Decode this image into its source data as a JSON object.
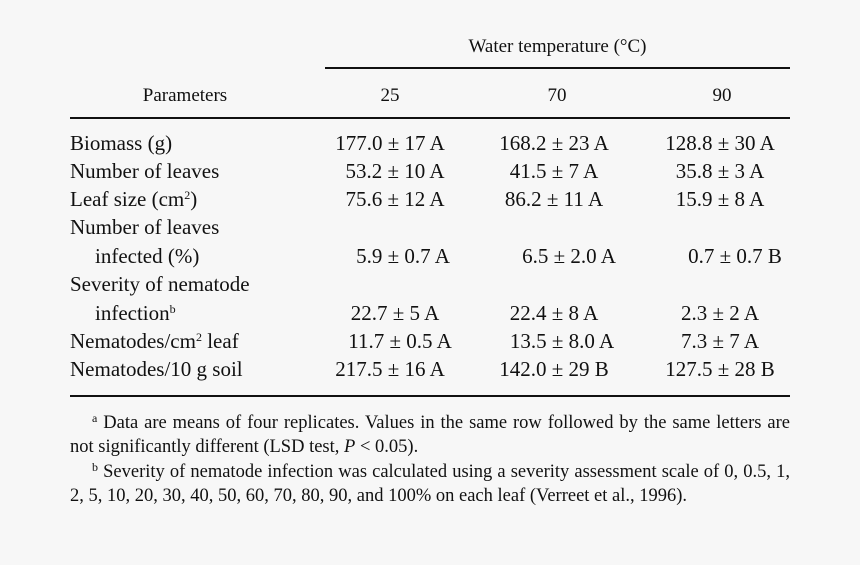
{
  "header": {
    "group_title": "Water temperature (°C)",
    "param_label": "Parameters",
    "columns": [
      "25",
      "70",
      "90"
    ]
  },
  "rows": [
    {
      "label": "Biomass (g)",
      "values": [
        "177.0 ± 17 A",
        "168.2 ± 23 A",
        "128.8 ± 30 A"
      ]
    },
    {
      "label": "Number of leaves",
      "values": [
        "53.2 ± 10 A",
        "41.5 ± 7 A",
        "35.8 ± 3 A"
      ]
    },
    {
      "label_pre": "Leaf size (cm",
      "label_sup": "2",
      "label_post": ")",
      "values": [
        "75.6 ± 12 A",
        "86.2 ± 11 A",
        "15.9 ± 8 A"
      ]
    },
    {
      "label_line1": "Number of leaves",
      "label_line2": "infected (%)",
      "values": [
        "5.9 ± 0.7 A",
        "6.5 ± 2.0 A",
        "0.7 ± 0.7 B"
      ]
    },
    {
      "label_line1": "Severity of nematode",
      "label_line2": "infection",
      "label_sup": "b",
      "values": [
        "22.7 ± 5 A",
        "22.4 ± 8 A",
        "2.3 ± 2 A"
      ]
    },
    {
      "label_pre": "Nematodes/cm",
      "label_sup": "2",
      "label_post": " leaf",
      "values": [
        "11.7 ± 0.5 A",
        "13.5 ± 8.0 A",
        "7.3 ± 7 A"
      ]
    },
    {
      "label": "Nematodes/10 g soil",
      "values": [
        "217.5 ± 16 A",
        "142.0 ± 29 B",
        "127.5 ± 28 B"
      ]
    }
  ],
  "footnotes": {
    "a_mark": "a",
    "a_text_1": " Data are means of four replicates. Values in the same row followed by the same letters are not significantly different (LSD test, ",
    "a_p": "P",
    "a_text_2": " < 0.05).",
    "b_mark": "b",
    "b_text": " Severity of nematode infection was calculated using a severity assessment scale of 0, 0.5, 1, 2, 5, 10, 20, 30, 40, 50, 60, 70, 80, 90, and 100% on each leaf (Verreet et al., 1996)."
  }
}
